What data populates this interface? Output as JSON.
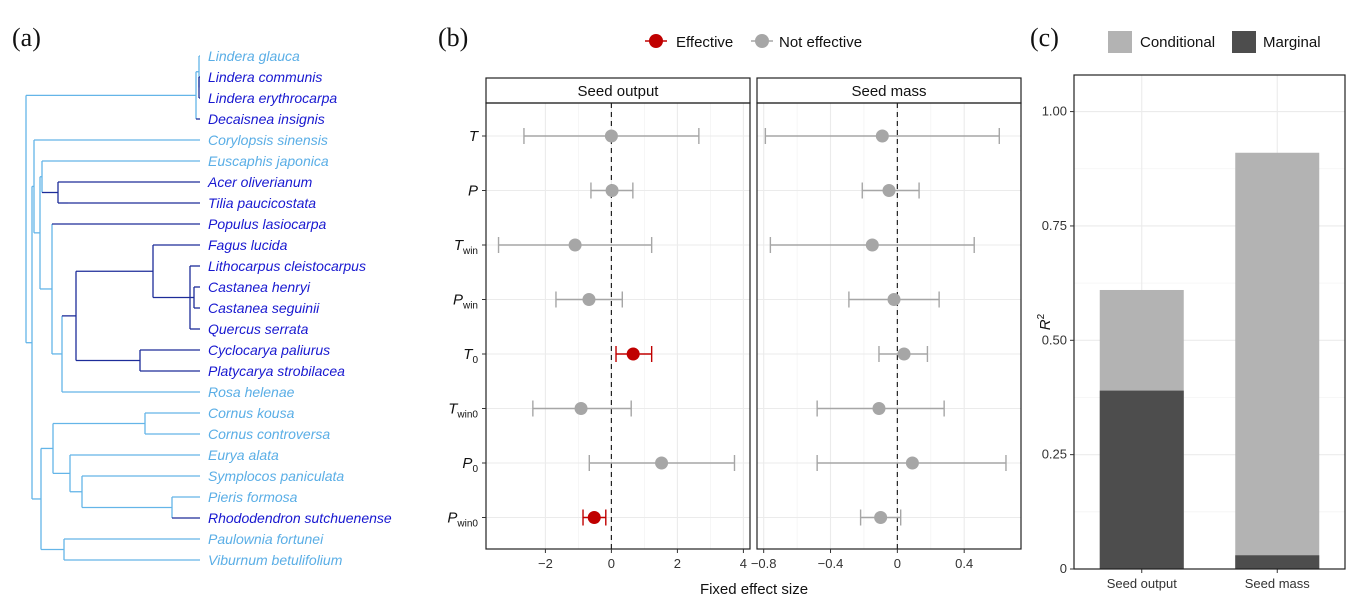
{
  "figure": {
    "panel_a_label": "(a)",
    "panel_b_label": "(b)",
    "panel_c_label": "(c)"
  },
  "colors": {
    "tree_light": "#64b5e8",
    "tree_dark": "#1d2c99",
    "taxon_light": "#5aaee6",
    "taxon_dark": "#1818d0",
    "effective": "#c00000",
    "not_effective": "#a6a6a6",
    "conditional": "#b3b3b3",
    "marginal": "#4d4d4d",
    "grid": "#ebebeb"
  },
  "panel_a": {
    "taxa": [
      {
        "name": "Lindera glauca",
        "highlight": false
      },
      {
        "name": "Lindera communis",
        "highlight": true
      },
      {
        "name": "Lindera erythrocarpa",
        "highlight": true
      },
      {
        "name": "Decaisnea insignis",
        "highlight": true
      },
      {
        "name": "Corylopsis sinensis",
        "highlight": false
      },
      {
        "name": "Euscaphis japonica",
        "highlight": false
      },
      {
        "name": "Acer oliverianum",
        "highlight": true
      },
      {
        "name": "Tilia paucicostata",
        "highlight": true
      },
      {
        "name": "Populus lasiocarpa",
        "highlight": true
      },
      {
        "name": "Fagus lucida",
        "highlight": true
      },
      {
        "name": "Lithocarpus cleistocarpus",
        "highlight": true
      },
      {
        "name": "Castanea henryi",
        "highlight": true
      },
      {
        "name": "Castanea seguinii",
        "highlight": true
      },
      {
        "name": "Quercus serrata",
        "highlight": true
      },
      {
        "name": "Cyclocarya paliurus",
        "highlight": true
      },
      {
        "name": "Platycarya strobilacea",
        "highlight": true
      },
      {
        "name": "Rosa helenae",
        "highlight": false
      },
      {
        "name": "Cornus kousa",
        "highlight": false
      },
      {
        "name": "Cornus controversa",
        "highlight": false
      },
      {
        "name": "Eurya alata",
        "highlight": false
      },
      {
        "name": "Symplocos paniculata",
        "highlight": false
      },
      {
        "name": "Pieris formosa",
        "highlight": false
      },
      {
        "name": "Rhododendron sutchuenense",
        "highlight": true
      },
      {
        "name": "Paulownia fortunei",
        "highlight": false
      },
      {
        "name": "Viburnum betulifolium",
        "highlight": false
      }
    ]
  },
  "legend_b": {
    "effective_label": "Effective",
    "not_effective_label": "Not effective"
  },
  "legend_c": {
    "conditional_label": "Conditional",
    "marginal_label": "Marginal"
  },
  "chart_data": [
    {
      "type": "scatter",
      "panel": "b",
      "subtype": "forest-plot",
      "xlabel": "Fixed effect size",
      "reference_line": 0,
      "legend": [
        "Effective",
        "Not effective"
      ],
      "rows": [
        {
          "main": "T",
          "sub": ""
        },
        {
          "main": "P",
          "sub": ""
        },
        {
          "main": "T",
          "sub": "win"
        },
        {
          "main": "P",
          "sub": "win"
        },
        {
          "main": "T",
          "sub": "0"
        },
        {
          "main": "T",
          "sub": "win0"
        },
        {
          "main": "P",
          "sub": "0"
        },
        {
          "main": "P",
          "sub": "win0"
        }
      ],
      "facets": [
        {
          "title": "Seed output",
          "xlim": [
            -3.8,
            4.2
          ],
          "xticks": [
            -2,
            0,
            2,
            4
          ],
          "xtick_labels": [
            "−2",
            "0",
            "2",
            "4"
          ],
          "estimates": [
            0.0,
            0.02,
            -1.1,
            -0.68,
            0.66,
            -0.92,
            1.52,
            -0.52
          ],
          "lower": [
            -2.65,
            -0.62,
            -3.42,
            -1.68,
            0.14,
            -2.38,
            -0.67,
            -0.86
          ],
          "upper": [
            2.65,
            0.65,
            1.22,
            0.33,
            1.22,
            0.6,
            3.73,
            -0.17
          ],
          "effective": [
            false,
            false,
            false,
            false,
            true,
            false,
            false,
            true
          ]
        },
        {
          "title": "Seed mass",
          "xlim": [
            -0.84,
            0.74
          ],
          "xticks": [
            -0.8,
            -0.4,
            0.0,
            0.4
          ],
          "xtick_labels": [
            "−0.8",
            "−0.4",
            "0",
            "0.4"
          ],
          "estimates": [
            -0.09,
            -0.05,
            -0.15,
            -0.02,
            0.04,
            -0.11,
            0.09,
            -0.1
          ],
          "lower": [
            -0.79,
            -0.21,
            -0.76,
            -0.29,
            -0.11,
            -0.48,
            -0.48,
            -0.22
          ],
          "upper": [
            0.61,
            0.13,
            0.46,
            0.25,
            0.18,
            0.28,
            0.65,
            0.02
          ],
          "effective": [
            false,
            false,
            false,
            false,
            false,
            false,
            false,
            false
          ]
        }
      ]
    },
    {
      "type": "bar",
      "panel": "c",
      "subtype": "overlaid",
      "categories": [
        "Seed output",
        "Seed mass"
      ],
      "series": [
        {
          "name": "Conditional",
          "values": [
            0.61,
            0.91
          ]
        },
        {
          "name": "Marginal",
          "values": [
            0.39,
            0.03
          ]
        }
      ],
      "ylabel": "R",
      "ylabel_superscript": "2",
      "ylim": [
        0,
        1.08
      ],
      "yticks": [
        0,
        0.25,
        0.5,
        0.75,
        1.0
      ],
      "ytick_labels": [
        "0",
        "0.25",
        "0.50",
        "0.75",
        "1.00"
      ]
    }
  ]
}
